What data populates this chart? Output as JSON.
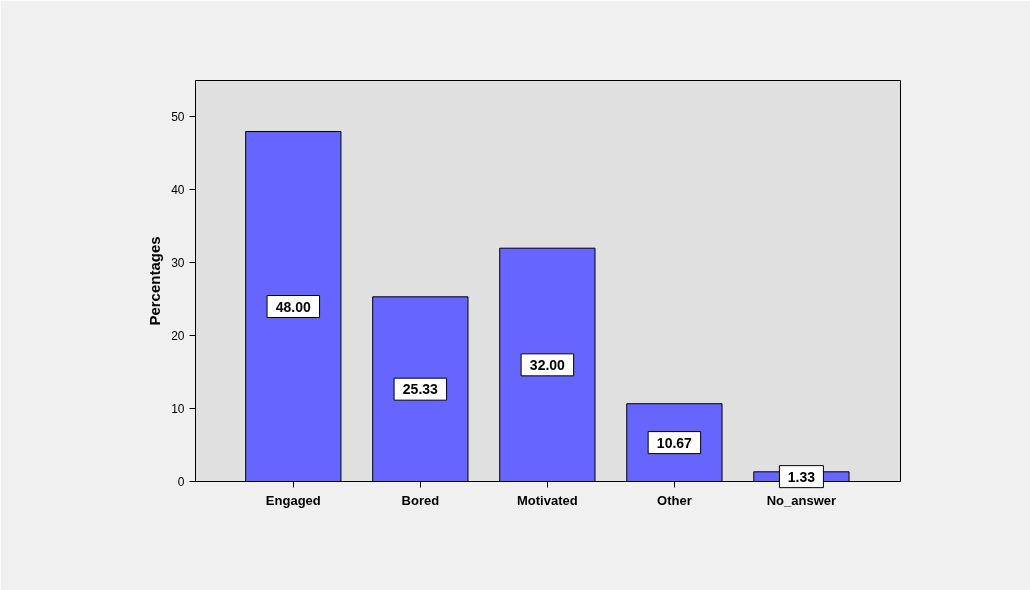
{
  "chart_data": {
    "type": "bar",
    "ylabel": "Percentages",
    "categories": [
      "Engaged",
      "Bored",
      "Motivated",
      "Other",
      "No_answer"
    ],
    "values": [
      48.0,
      25.33,
      32.0,
      10.67,
      1.33
    ],
    "value_labels": [
      "48.00",
      "25.33",
      "32.00",
      "10.67",
      "1.33"
    ],
    "color": "#6666ff",
    "ylim": [
      0,
      55
    ],
    "yticks": [
      0,
      10,
      20,
      30,
      40,
      50
    ]
  }
}
